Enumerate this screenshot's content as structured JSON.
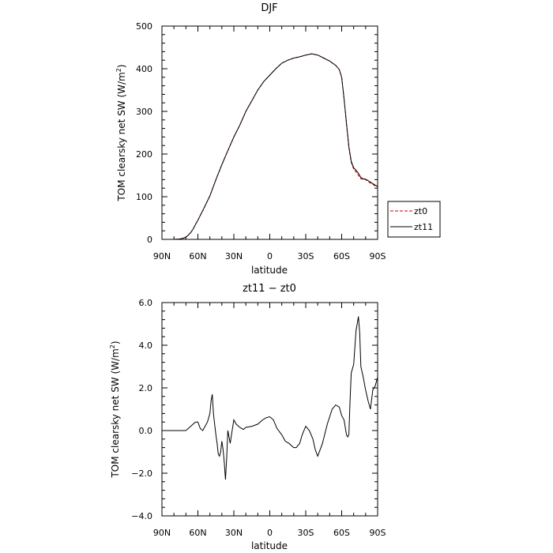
{
  "chart_data": [
    {
      "type": "line",
      "title": "DJF",
      "xlabel": "latitude",
      "ylabel": "TOM clearsky net SW (W/m²)",
      "ylabel_pre": "TOM clearsky net SW (W/m",
      "ylabel_sup": "2",
      "ylabel_post": ")",
      "xlim": [
        90,
        -90
      ],
      "ylim": [
        0,
        500
      ],
      "xticks": [
        {
          "value": 90,
          "label": "90N"
        },
        {
          "value": 60,
          "label": "60N"
        },
        {
          "value": 30,
          "label": "30N"
        },
        {
          "value": 0,
          "label": "0"
        },
        {
          "value": -30,
          "label": "30S"
        },
        {
          "value": -60,
          "label": "60S"
        },
        {
          "value": -90,
          "label": "90S"
        }
      ],
      "yticks": [
        {
          "value": 0,
          "label": "0"
        },
        {
          "value": 100,
          "label": "100"
        },
        {
          "value": 200,
          "label": "200"
        },
        {
          "value": 300,
          "label": "300"
        },
        {
          "value": 400,
          "label": "400"
        },
        {
          "value": 500,
          "label": "500"
        }
      ],
      "legend": {
        "position": "right"
      },
      "series": [
        {
          "name": "zt0",
          "color": "#cc0000",
          "style": "dashed",
          "x": [
            80,
            75,
            72,
            70,
            68,
            66,
            64,
            62,
            60,
            55,
            50,
            45,
            40,
            35,
            30,
            25,
            20,
            15,
            10,
            5,
            0,
            -5,
            -10,
            -15,
            -20,
            -25,
            -30,
            -35,
            -40,
            -45,
            -50,
            -55,
            -58,
            -60,
            -62,
            -64,
            -66,
            -68,
            -70,
            -72,
            -74,
            -76,
            -78,
            -80,
            -82,
            -84,
            -86,
            -88,
            -90
          ],
          "y": [
            0,
            1,
            3,
            5,
            10,
            16,
            24,
            35,
            45,
            73,
            102,
            140,
            175,
            208,
            240,
            268,
            300,
            325,
            350,
            370,
            385,
            400,
            413,
            420,
            425,
            428,
            432,
            435,
            432,
            425,
            418,
            408,
            398,
            380,
            330,
            270,
            215,
            180,
            165,
            158,
            150,
            142,
            141,
            140,
            136,
            132,
            129,
            125,
            123
          ]
        },
        {
          "name": "zt11",
          "color": "#000000",
          "style": "solid",
          "x": [
            80,
            75,
            72,
            70,
            68,
            66,
            64,
            62,
            60,
            55,
            50,
            45,
            40,
            35,
            30,
            25,
            20,
            15,
            10,
            5,
            0,
            -5,
            -10,
            -15,
            -20,
            -25,
            -30,
            -35,
            -40,
            -45,
            -50,
            -55,
            -58,
            -60,
            -62,
            -64,
            -66,
            -68,
            -70,
            -72,
            -74,
            -76,
            -78,
            -80,
            -82,
            -84,
            -86,
            -88,
            -90
          ],
          "y": [
            0,
            1,
            3,
            5,
            10,
            16,
            24,
            35,
            45,
            73,
            102,
            140,
            175,
            208,
            240,
            268,
            300,
            325,
            350,
            370,
            385,
            400,
            413,
            420,
            425,
            428,
            432,
            435,
            432,
            425,
            418,
            408,
            398,
            380,
            330,
            272,
            218,
            183,
            168,
            162,
            155,
            145,
            142,
            141,
            138,
            134,
            131,
            127,
            124
          ]
        }
      ]
    },
    {
      "type": "line",
      "title": "zt11 − zt0",
      "xlabel": "latitude",
      "ylabel": "TOM clearsky net SW (W/m²)",
      "ylabel_pre": "TOM clearsky net SW (W/m",
      "ylabel_sup": "2",
      "ylabel_post": ")",
      "xlim": [
        90,
        -90
      ],
      "ylim": [
        -4,
        6
      ],
      "xticks": [
        {
          "value": 90,
          "label": "90N"
        },
        {
          "value": 60,
          "label": "60N"
        },
        {
          "value": 30,
          "label": "30N"
        },
        {
          "value": 0,
          "label": "0"
        },
        {
          "value": -30,
          "label": "30S"
        },
        {
          "value": -60,
          "label": "60S"
        },
        {
          "value": -90,
          "label": "90S"
        }
      ],
      "yticks": [
        {
          "value": -4,
          "label": "−4.0"
        },
        {
          "value": -2,
          "label": "−2.0"
        },
        {
          "value": 0,
          "label": "0.0"
        },
        {
          "value": 2,
          "label": "2.0"
        },
        {
          "value": 4,
          "label": "4.0"
        },
        {
          "value": 6,
          "label": "6.0"
        }
      ],
      "series": [
        {
          "name": "",
          "color": "#000000",
          "style": "solid",
          "x": [
            90,
            80,
            72,
            70,
            66,
            64,
            62,
            60,
            58,
            56,
            54,
            52,
            50,
            49,
            48,
            47,
            46,
            45,
            44,
            43,
            42,
            41,
            40,
            39,
            38,
            37,
            36,
            35,
            34,
            33,
            32,
            30,
            28,
            25,
            22,
            20,
            15,
            10,
            6,
            3,
            0,
            -3,
            -6,
            -10,
            -13,
            -16,
            -20,
            -22,
            -25,
            -27,
            -30,
            -33,
            -36,
            -38,
            -40,
            -44,
            -48,
            -52,
            -55,
            -58,
            -60,
            -62,
            -64,
            -65,
            -66,
            -67,
            -68,
            -70,
            -72,
            -73,
            -74,
            -75,
            -76,
            -78,
            -80,
            -82,
            -84,
            -86,
            -88,
            -90
          ],
          "y": [
            0,
            0,
            0,
            0,
            0.2,
            0.3,
            0.4,
            0.4,
            0.1,
            0.0,
            0.2,
            0.4,
            0.8,
            1.4,
            1.7,
            0.8,
            0.3,
            -0.2,
            -0.6,
            -1.1,
            -1.2,
            -1.0,
            -0.5,
            -0.9,
            -1.5,
            -2.3,
            -1.3,
            0.0,
            -0.3,
            -0.6,
            -0.2,
            0.5,
            0.3,
            0.15,
            0.05,
            0.15,
            0.2,
            0.3,
            0.5,
            0.6,
            0.65,
            0.5,
            0.1,
            -0.2,
            -0.5,
            -0.6,
            -0.8,
            -0.8,
            -0.6,
            -0.2,
            0.2,
            0.0,
            -0.4,
            -0.9,
            -1.2,
            -0.6,
            0.3,
            1.0,
            1.2,
            1.1,
            0.7,
            0.5,
            -0.2,
            -0.3,
            -0.2,
            1.4,
            2.7,
            3.1,
            4.7,
            5.0,
            5.35,
            4.6,
            3.0,
            2.5,
            1.9,
            1.4,
            1.0,
            1.9,
            2.1,
            2.5
          ]
        }
      ]
    }
  ]
}
